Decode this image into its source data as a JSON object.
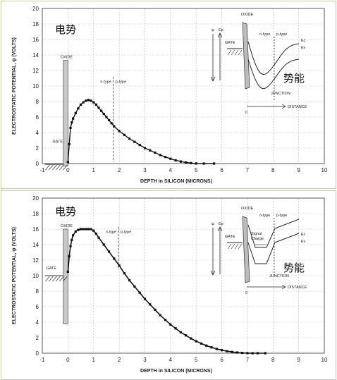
{
  "chart_data": [
    {
      "type": "line",
      "xlabel": "DEPTH in SILICON (MICRONS)",
      "ylabel": "ELECTROSTATIC POTENTIAL, ψ (VOLTS)",
      "xlim": [
        -1,
        10
      ],
      "ylim": [
        0,
        20
      ],
      "xticks": [
        "-1",
        "0",
        "1",
        "2",
        "3",
        "4",
        "5",
        "6",
        "7",
        "8",
        "9",
        "10"
      ],
      "yticks": [
        "0",
        "2",
        "4",
        "6",
        "8",
        "10",
        "12",
        "14",
        "16",
        "18",
        "20"
      ],
      "grid": true,
      "annotations": {
        "chinese_left": "电势",
        "chinese_right": "势能",
        "oxide": "OXIDE",
        "gate": "GATE",
        "n_type": "n-type",
        "p_type": "p-type",
        "inset_oxide": "OXIDE",
        "inset_gate": "GATE",
        "inset_psi": "ψ",
        "inset_ep": "Ep",
        "inset_ec": "Ec",
        "inset_ev": "Ev",
        "inset_n": "n-type",
        "inset_p": "p-type",
        "junction": "JUNCTION",
        "distance": "DISTANCE",
        "zero": "0"
      },
      "series": [
        {
          "x": [
            0.0,
            0.05,
            0.1,
            0.15,
            0.2,
            0.3,
            0.4,
            0.5,
            0.6,
            0.7,
            0.8,
            0.9,
            1.0,
            1.1,
            1.2,
            1.3,
            1.4,
            1.5,
            1.6,
            1.7,
            1.8,
            2.0,
            2.2,
            2.4,
            2.6,
            2.8,
            3.0,
            3.2,
            3.4,
            3.6,
            3.8,
            4.0,
            4.2,
            4.4,
            4.6,
            4.8,
            5.0,
            5.3,
            5.7
          ],
          "y": [
            0.2,
            2.5,
            4.6,
            5.3,
            5.8,
            6.5,
            7.1,
            7.6,
            7.9,
            8.1,
            8.2,
            8.1,
            7.9,
            7.6,
            7.2,
            6.8,
            6.4,
            6.0,
            5.6,
            5.2,
            4.8,
            4.2,
            3.7,
            3.2,
            2.8,
            2.4,
            2.0,
            1.7,
            1.4,
            1.1,
            0.85,
            0.62,
            0.42,
            0.26,
            0.14,
            0.06,
            0.01,
            0.0,
            0.0
          ]
        }
      ]
    },
    {
      "type": "line",
      "xlabel": "DEPTH in SILICON (MICRONS)",
      "ylabel": "ELECTROSTATIC POTENTIAL, ψ (VOLTS)",
      "xlim": [
        -1,
        10
      ],
      "ylim": [
        0,
        20
      ],
      "xticks": [
        "-1",
        "0",
        "1",
        "2",
        "3",
        "4",
        "5",
        "6",
        "7",
        "8",
        "9",
        "10"
      ],
      "yticks": [
        "0",
        "2",
        "4",
        "6",
        "8",
        "10",
        "12",
        "14",
        "16",
        "18",
        "20"
      ],
      "grid": true,
      "annotations": {
        "chinese_left": "电势",
        "chinese_right": "势能",
        "oxide": "OXIDE",
        "gate": "GATE",
        "n_type": "n-type",
        "p_type": "p-type",
        "inset_oxide": "OXIDE",
        "inset_gate": "GATE",
        "inset_psi": "ψ",
        "inset_ep": "Ep",
        "inset_ec": "Ec",
        "inset_ev": "Ev",
        "inset_n": "n-type",
        "inset_p": "p-type",
        "signal_1": "Signal",
        "signal_2": "Charge",
        "junction": "JUNCTION",
        "distance": "DISTANCE",
        "zero": "0"
      },
      "series": [
        {
          "x": [
            0.0,
            0.05,
            0.1,
            0.15,
            0.2,
            0.3,
            0.4,
            0.5,
            0.6,
            0.7,
            0.8,
            0.9,
            1.0,
            1.1,
            1.2,
            1.4,
            1.6,
            1.8,
            2.0,
            2.2,
            2.4,
            2.6,
            2.8,
            3.0,
            3.2,
            3.4,
            3.6,
            3.8,
            4.0,
            4.2,
            4.4,
            4.6,
            4.8,
            5.0,
            5.2,
            5.4,
            5.6,
            5.8,
            6.0,
            6.2,
            6.4,
            6.6,
            6.8,
            7.0,
            7.2,
            7.4,
            7.7
          ],
          "y": [
            10.5,
            12.5,
            13.8,
            14.6,
            15.2,
            15.7,
            15.9,
            16.0,
            16.0,
            16.0,
            16.0,
            16.0,
            15.8,
            15.4,
            14.9,
            14.0,
            13.1,
            12.2,
            11.3,
            10.3,
            9.4,
            8.6,
            7.8,
            7.0,
            6.3,
            5.6,
            4.9,
            4.3,
            3.7,
            3.2,
            2.7,
            2.3,
            1.9,
            1.55,
            1.25,
            0.98,
            0.75,
            0.55,
            0.39,
            0.26,
            0.16,
            0.09,
            0.04,
            0.01,
            0.0,
            0.0,
            0.0
          ]
        }
      ]
    }
  ]
}
